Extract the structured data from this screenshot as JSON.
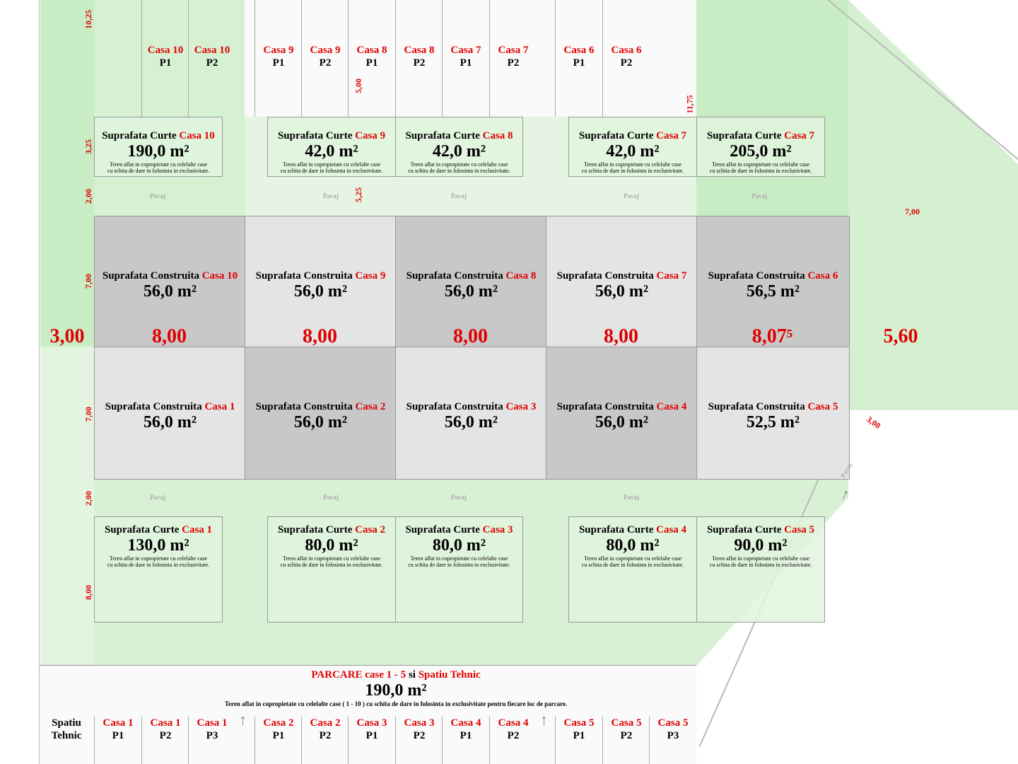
{
  "top_parking": [
    {
      "house": "Casa 10",
      "spot": "P1"
    },
    {
      "house": "Casa 10",
      "spot": "P2"
    },
    {
      "house": "Casa 9",
      "spot": "P1"
    },
    {
      "house": "Casa 9",
      "spot": "P2"
    },
    {
      "house": "Casa 8",
      "spot": "P1"
    },
    {
      "house": "Casa 8",
      "spot": "P2"
    },
    {
      "house": "Casa 7",
      "spot": "P1"
    },
    {
      "house": "Casa 7",
      "spot": "P2"
    },
    {
      "house": "Casa 6",
      "spot": "P1"
    },
    {
      "house": "Casa 6",
      "spot": "P2"
    }
  ],
  "yard_title": "Suprafata Curte",
  "built_title": "Suprafata Construita",
  "yard_note_1": "Teren aflat in copropietate cu celelalte case",
  "yard_note_2": "cu schita de dare in folosinta in exclusivitate.",
  "pavement_label": "Pavaj",
  "top_yards": [
    {
      "house": "Casa 10",
      "area": "190,0 m²"
    },
    {
      "house": "Casa 9",
      "area": "42,0 m²"
    },
    {
      "house": "Casa 8",
      "area": "42,0 m²"
    },
    {
      "house": "Casa 7",
      "area": "42,0 m²"
    },
    {
      "house": "Casa 7",
      "area": "205,0 m²"
    }
  ],
  "top_houses": [
    {
      "house": "Casa 10",
      "area": "56,0 m²"
    },
    {
      "house": "Casa 9",
      "area": "56,0 m²"
    },
    {
      "house": "Casa 8",
      "area": "56,0 m²"
    },
    {
      "house": "Casa 7",
      "area": "56,0 m²"
    },
    {
      "house": "Casa 6",
      "area": "56,5 m²"
    }
  ],
  "bottom_houses": [
    {
      "house": "Casa 1",
      "area": "56,0 m²"
    },
    {
      "house": "Casa 2",
      "area": "56,0 m²"
    },
    {
      "house": "Casa 3",
      "area": "56,0 m²"
    },
    {
      "house": "Casa 4",
      "area": "56,0 m²"
    },
    {
      "house": "Casa 5",
      "area": "52,5 m²"
    }
  ],
  "bottom_yards": [
    {
      "house": "Casa 1",
      "area": "130,0 m²"
    },
    {
      "house": "Casa 2",
      "area": "80,0 m²"
    },
    {
      "house": "Casa 3",
      "area": "80,0 m²"
    },
    {
      "house": "Casa 4",
      "area": "80,0 m²"
    },
    {
      "house": "Casa 5",
      "area": "90,0 m²"
    }
  ],
  "width_dims": [
    "3,00",
    "8,00",
    "8,00",
    "8,00",
    "8,00",
    "8,07⁵",
    "5,60"
  ],
  "vertical_dims": [
    "10,25",
    "3,25",
    "2,00",
    "7,00",
    "7,00",
    "2,00",
    "8,00",
    "5,00",
    "5,25",
    "11,75"
  ],
  "other_dims": {
    "right_top": "7,00",
    "diag": "3,00"
  },
  "parking_bottom": {
    "title_red_1": "PARCARE case 1 - 5",
    "title_black": " si ",
    "title_red_2": "Spatiu Tehnic",
    "area": "190,0 m²",
    "note": "Teren aflat in copropietate cu celelalte case ( 1 - 10 ) cu schita de dare in folosinta in exclusivitate pentru fiecare loc de parcare.",
    "technical_1": "Spatiu",
    "technical_2": "Tehnic",
    "spots": [
      {
        "house": "Casa 1",
        "spot": "P1"
      },
      {
        "house": "Casa 1",
        "spot": "P2"
      },
      {
        "house": "Casa 1",
        "spot": "P3"
      },
      {
        "house": "Casa 2",
        "spot": "P1"
      },
      {
        "house": "Casa 2",
        "spot": "P2"
      },
      {
        "house": "Casa 3",
        "spot": "P1"
      },
      {
        "house": "Casa 3",
        "spot": "P2"
      },
      {
        "house": "Casa 4",
        "spot": "P1"
      },
      {
        "house": "Casa 4",
        "spot": "P2"
      },
      {
        "house": "Casa 5",
        "spot": "P1"
      },
      {
        "house": "Casa 5",
        "spot": "P2"
      },
      {
        "house": "Casa 5",
        "spot": "P3"
      }
    ]
  },
  "colors": {
    "green": "#c8ecc4",
    "light_green": "#e3f5e0",
    "house_gray": "#c4c4c4",
    "house_light": "#e6e6e6",
    "red": "#e00000"
  }
}
